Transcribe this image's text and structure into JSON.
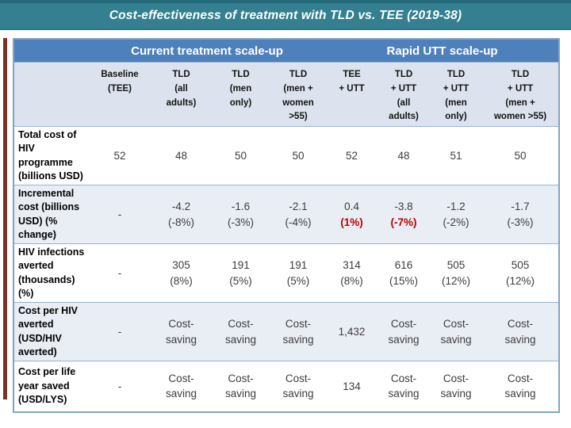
{
  "banner": {
    "title": "Cost-effectiveness of treatment with TLD vs. TEE (2019-38)"
  },
  "colors": {
    "banner_teal": "#347f90",
    "group_header_blue": "#4e80bb",
    "column_header_bg": "#dce3ee",
    "band_row_bg": "#e9edf4",
    "row_border_blue": "#95b3d7",
    "outer_border_blue": "#7fa3c8",
    "accent_bar_red": "#773225",
    "highlight_red": "#c00000"
  },
  "table": {
    "group_headers": [
      {
        "label": "Current treatment scale-up",
        "span": 4
      },
      {
        "label": "Rapid UTT scale-up",
        "span": 4
      }
    ],
    "column_headers": [
      "",
      "Baseline\n(TEE)",
      "TLD\n(all\nadults)",
      "TLD\n(men\nonly)",
      "TLD\n(men +\nwomen\n>55)",
      "TEE\n+ UTT",
      "TLD\n+ UTT\n(all\nadults)",
      "TLD\n+ UTT\n(men\nonly)",
      "TLD\n+ UTT\n(men +\nwomen >55)"
    ],
    "rows": [
      {
        "label": "Total cost of\nHIV\nprogramme\n(billions USD)",
        "cells": [
          {
            "lines": [
              "52"
            ]
          },
          {
            "lines": [
              "48"
            ]
          },
          {
            "lines": [
              "50"
            ]
          },
          {
            "lines": [
              "50"
            ]
          },
          {
            "lines": [
              "52"
            ]
          },
          {
            "lines": [
              "48"
            ]
          },
          {
            "lines": [
              "51"
            ]
          },
          {
            "lines": [
              "50"
            ]
          }
        ]
      },
      {
        "label": "Incremental\ncost (billions\nUSD) (%\nchange)",
        "cells": [
          {
            "lines": [
              "-"
            ]
          },
          {
            "lines": [
              "-4.2",
              "(-8%)"
            ]
          },
          {
            "lines": [
              "-1.6",
              "(-3%)"
            ]
          },
          {
            "lines": [
              "-2.1",
              "(-4%)"
            ]
          },
          {
            "lines": [
              "0.4",
              "(1%)"
            ],
            "red_lines": [
              1
            ]
          },
          {
            "lines": [
              "-3.8",
              "(-7%)"
            ],
            "red_lines": [
              1
            ]
          },
          {
            "lines": [
              "-1.2",
              "(-2%)"
            ]
          },
          {
            "lines": [
              "-1.7",
              "(-3%)"
            ]
          }
        ]
      },
      {
        "label": "HIV infections\naverted\n(thousands)\n(%)",
        "cells": [
          {
            "lines": [
              "-"
            ]
          },
          {
            "lines": [
              "305",
              "(8%)"
            ]
          },
          {
            "lines": [
              "191",
              "(5%)"
            ]
          },
          {
            "lines": [
              "191",
              "(5%)"
            ]
          },
          {
            "lines": [
              "314",
              "(8%)"
            ]
          },
          {
            "lines": [
              "616",
              "(15%)"
            ]
          },
          {
            "lines": [
              "505",
              "(12%)"
            ]
          },
          {
            "lines": [
              "505",
              "(12%)"
            ]
          }
        ]
      },
      {
        "label": "Cost per HIV\naverted\n(USD/HIV\naverted)",
        "cells": [
          {
            "lines": [
              "-"
            ]
          },
          {
            "lines": [
              "Cost-",
              "saving"
            ]
          },
          {
            "lines": [
              "Cost-",
              "saving"
            ]
          },
          {
            "lines": [
              "Cost-",
              "saving"
            ]
          },
          {
            "lines": [
              "1,432"
            ]
          },
          {
            "lines": [
              "Cost-",
              "saving"
            ]
          },
          {
            "lines": [
              "Cost-",
              "saving"
            ]
          },
          {
            "lines": [
              "Cost-",
              "saving"
            ]
          }
        ]
      },
      {
        "label": "Cost per life\nyear saved\n(USD/LYS)",
        "cells": [
          {
            "lines": [
              "-"
            ]
          },
          {
            "lines": [
              "Cost-",
              "saving"
            ]
          },
          {
            "lines": [
              "Cost-",
              "saving"
            ]
          },
          {
            "lines": [
              "Cost-",
              "saving"
            ]
          },
          {
            "lines": [
              "134"
            ]
          },
          {
            "lines": [
              "Cost-",
              "saving"
            ]
          },
          {
            "lines": [
              "Cost-",
              "saving"
            ]
          },
          {
            "lines": [
              "Cost-",
              "saving"
            ]
          }
        ]
      }
    ]
  }
}
